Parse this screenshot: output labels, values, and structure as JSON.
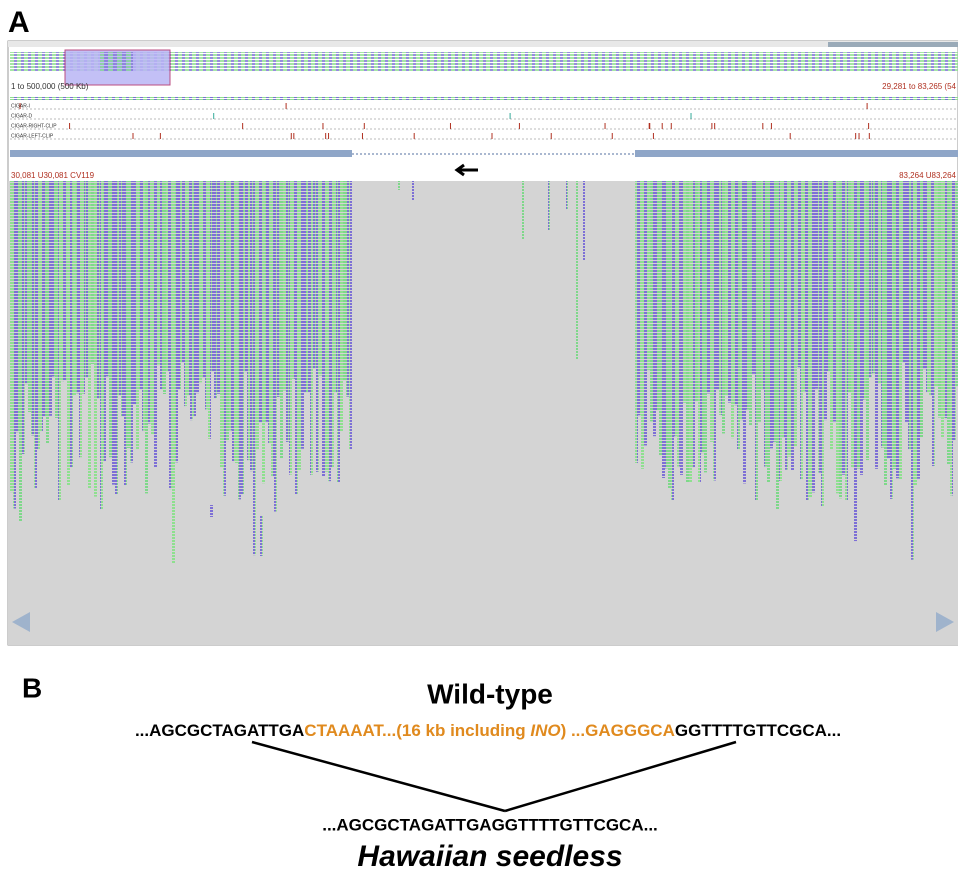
{
  "panel_a": {
    "label": "A",
    "overview_range": "1 to 500,000 (500 Kb)",
    "view_range": "29,281 to 83,265 (54",
    "tracks": [
      "CIGAR-I",
      "CIGAR-D",
      "CIGAR-RIGHT-CLIP",
      "CIGAR-LEFT-CLIP"
    ],
    "left_position": "30,081 U30,081 CV119",
    "right_position": "83,264 U83,264"
  },
  "panel_b": {
    "label": "B",
    "wild_type_title": "Wild-type",
    "wild_type_sequence": {
      "left": "...AGCGCTAGATTGA",
      "deleted_start": "CTAAAAT...(16 kb including ",
      "gene": "INO",
      "deleted_end": ") ...GAGGGCA",
      "right": "GGTTTTGTTCGCA..."
    },
    "seedless_sequence": "...AGCGCTAGATTGAGGTTTTGTTCGCA...",
    "seedless_title": "Hawaiian seedless"
  }
}
